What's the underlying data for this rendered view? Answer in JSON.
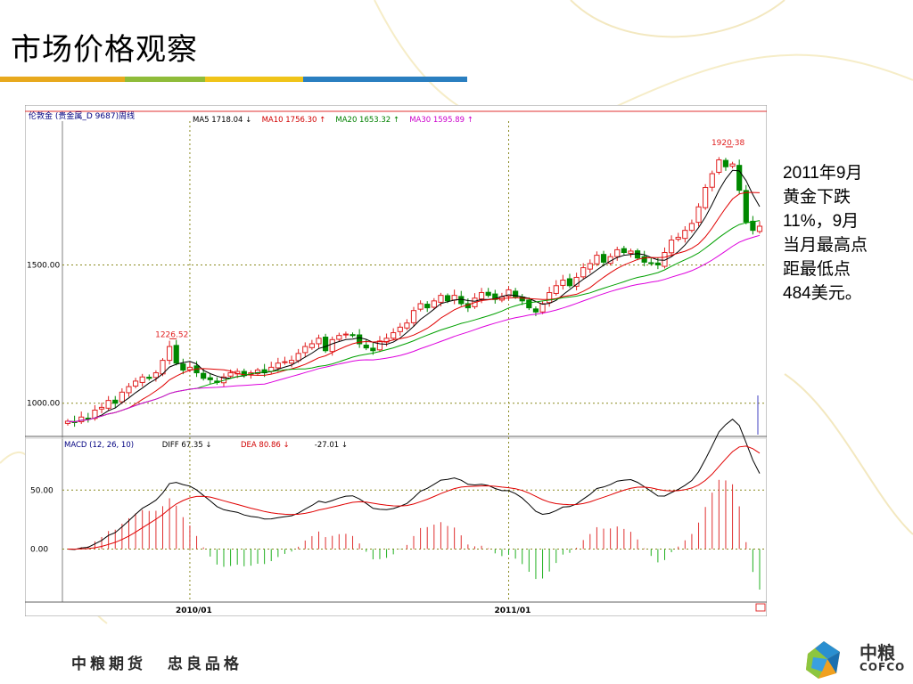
{
  "slide": {
    "title": "市场价格观察",
    "title_bar_colors": [
      "#e8a91d",
      "#8fbc3a",
      "#f0c419",
      "#2a7fc0"
    ],
    "note_lines": [
      "2011年9月",
      "黄金下跌",
      "11%，9月",
      "当月最高点",
      "距最低点",
      "484美元。"
    ],
    "footer_slogan": [
      "中粮期货",
      "忠良品格"
    ],
    "logo": {
      "name": "中粮",
      "en": "COFCO"
    }
  },
  "chart_data": {
    "type": "candlestick",
    "instrument_label": "伦敦金  (贵金属_D 9687)周线",
    "ma_header": [
      {
        "label": "MA5 1718.04 ↓",
        "color": "#000000"
      },
      {
        "label": "MA10 1756.30 ↑",
        "color": "#d00000"
      },
      {
        "label": "MA20 1653.32 ↑",
        "color": "#008000"
      },
      {
        "label": "MA30 1595.89 ↑",
        "color": "#cc00cc"
      }
    ],
    "price_axis": {
      "ylim": [
        880,
        2020
      ],
      "ticks": [
        1000,
        1500
      ],
      "tick_labels": [
        "1000.00",
        "1500.00"
      ]
    },
    "time_axis": {
      "labels": [
        "2010/01",
        "2011/01"
      ],
      "label_index": [
        18,
        65
      ]
    },
    "annotations": [
      {
        "text": "1226.52",
        "index": 15,
        "value": 1226.52
      },
      {
        "text": "1920.38",
        "index": 97,
        "value": 1920.38
      }
    ],
    "close": [
      935,
      930,
      950,
      945,
      975,
      985,
      1010,
      1000,
      1040,
      1060,
      1080,
      1095,
      1090,
      1110,
      1155,
      1205,
      1145,
      1120,
      1130,
      1110,
      1090,
      1085,
      1075,
      1095,
      1110,
      1115,
      1100,
      1110,
      1120,
      1110,
      1130,
      1145,
      1150,
      1155,
      1180,
      1205,
      1215,
      1235,
      1190,
      1230,
      1245,
      1250,
      1245,
      1215,
      1200,
      1190,
      1225,
      1235,
      1255,
      1275,
      1290,
      1335,
      1360,
      1345,
      1370,
      1390,
      1370,
      1390,
      1360,
      1345,
      1380,
      1400,
      1390,
      1375,
      1385,
      1410,
      1385,
      1370,
      1345,
      1330,
      1360,
      1400,
      1425,
      1445,
      1425,
      1455,
      1490,
      1505,
      1535,
      1510,
      1530,
      1555,
      1545,
      1550,
      1525,
      1510,
      1505,
      1500,
      1545,
      1590,
      1600,
      1625,
      1650,
      1710,
      1780,
      1830,
      1880,
      1855,
      1865,
      1770,
      1655,
      1625,
      1640
    ],
    "ma_series": [
      {
        "name": "MA5",
        "color": "#000000"
      },
      {
        "name": "MA10",
        "color": "#e00000"
      },
      {
        "name": "MA20",
        "color": "#00a000"
      },
      {
        "name": "MA30",
        "color": "#dd00dd"
      }
    ],
    "macd": {
      "header": [
        {
          "label": "MACD (12, 26, 10)",
          "color": "#000080"
        },
        {
          "label": "DIFF  67.35 ↓",
          "color": "#000000"
        },
        {
          "label": "DEA  80.86 ↓",
          "color": "#d00000"
        },
        {
          "label": "-27.01 ↓",
          "color": "#000000"
        }
      ],
      "ylim": [
        -45,
        85
      ],
      "ticks": [
        0,
        50
      ],
      "tick_labels": [
        "0.00",
        "50.00"
      ],
      "diff_color": "#000000",
      "dea_color": "#e00000",
      "hist_up_color": "#e03030",
      "hist_down_color": "#20b020"
    },
    "grid": true
  }
}
